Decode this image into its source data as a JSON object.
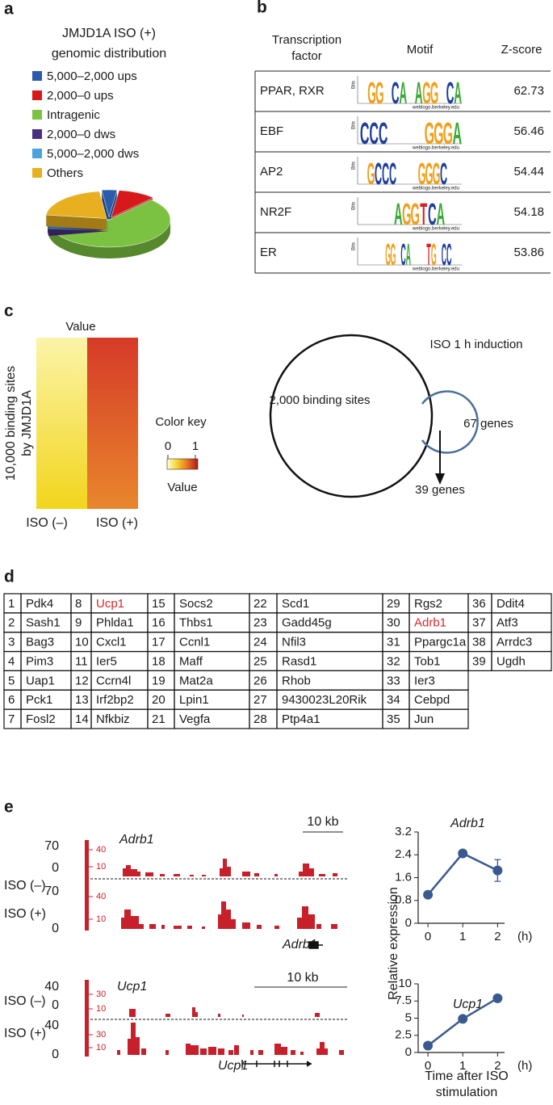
{
  "panel_a": {
    "label": "a",
    "chart_data": {
      "type": "pie",
      "title": [
        "JMJD1A ISO (+)",
        "genomic distribution"
      ],
      "categories": [
        "5,000–2,000 ups",
        "2,000–0 ups",
        "Intragenic",
        "2,000–0 dws",
        "5,000–2,000 dws",
        "Others"
      ],
      "values": [
        4,
        10,
        60,
        4,
        1,
        21
      ],
      "colors": [
        "#2a5caa",
        "#d7191c",
        "#7cc242",
        "#4b2d83",
        "#4aa3df",
        "#e8b020"
      ]
    }
  },
  "panel_b": {
    "label": "b",
    "headers": {
      "factor": [
        "Transcription",
        "factor"
      ],
      "motif": "Motif",
      "z_score": "Z-score"
    },
    "logo_axis": "Bits",
    "logo_credit": "weblogo.berkeley.edu",
    "letter_colors": {
      "A": "#3aa935",
      "C": "#1f3e9e",
      "G": "#f0a01c",
      "T": "#d61f26"
    },
    "rows": [
      {
        "factor": "PPAR, RXR",
        "z_score": 62.73,
        "motif_length": 13,
        "motif": [
          {
            "letter": "G",
            "position": 2
          },
          {
            "letter": "G",
            "position": 3
          },
          {
            "letter": "C",
            "position": 5
          },
          {
            "letter": "A",
            "position": 6
          },
          {
            "letter": "A",
            "position": 8
          },
          {
            "letter": "G",
            "position": 9
          },
          {
            "letter": "G",
            "position": 10
          },
          {
            "letter": "C",
            "position": 12
          },
          {
            "letter": "A",
            "position": 13
          }
        ]
      },
      {
        "factor": "EBF",
        "z_score": 56.46,
        "motif_length": 11,
        "motif": [
          {
            "letter": "C",
            "position": 1
          },
          {
            "letter": "C",
            "position": 2
          },
          {
            "letter": "C",
            "position": 3
          },
          {
            "letter": "G",
            "position": 8
          },
          {
            "letter": "G",
            "position": 9
          },
          {
            "letter": "G",
            "position": 10
          },
          {
            "letter": "A",
            "position": 11
          }
        ]
      },
      {
        "factor": "AP2",
        "z_score": 54.44,
        "motif_length": 14,
        "motif": [
          {
            "letter": "G",
            "position": 2
          },
          {
            "letter": "C",
            "position": 3
          },
          {
            "letter": "C",
            "position": 4
          },
          {
            "letter": "C",
            "position": 5
          },
          {
            "letter": "G",
            "position": 9
          },
          {
            "letter": "G",
            "position": 10
          },
          {
            "letter": "G",
            "position": 11
          },
          {
            "letter": "C",
            "position": 12
          }
        ]
      },
      {
        "factor": "NR2F",
        "z_score": 54.18,
        "motif_length": 12,
        "motif": [
          {
            "letter": "A",
            "position": 5
          },
          {
            "letter": "G",
            "position": 6
          },
          {
            "letter": "G",
            "position": 7
          },
          {
            "letter": "T",
            "position": 8
          },
          {
            "letter": "C",
            "position": 9
          },
          {
            "letter": "A",
            "position": 10
          }
        ]
      },
      {
        "factor": "ER",
        "z_score": 53.86,
        "motif_length": 20,
        "motif": [
          {
            "letter": "G",
            "position": 6
          },
          {
            "letter": "G",
            "position": 7
          },
          {
            "letter": "C",
            "position": 9
          },
          {
            "letter": "A",
            "position": 10
          },
          {
            "letter": "T",
            "position": 14
          },
          {
            "letter": "G",
            "position": 15
          },
          {
            "letter": "C",
            "position": 17
          },
          {
            "letter": "C",
            "position": 18
          }
        ]
      }
    ]
  },
  "panel_c": {
    "label": "c",
    "heatmap": {
      "title": "Value",
      "y_label": [
        "10,000 binding sites",
        "by JMJD1A"
      ],
      "columns": [
        "ISO (–)",
        "ISO (+)"
      ],
      "column_gradients": [
        [
          "#fbf4a8",
          "#f2d51c"
        ],
        [
          "#d63a28",
          "#e8862c"
        ]
      ],
      "color_key": {
        "title": "Color key",
        "ticks": [
          0,
          1
        ],
        "label": "Value",
        "colors": [
          "#ffffd0",
          "#f5d030",
          "#e87020",
          "#b01818"
        ]
      }
    },
    "venn": {
      "title": "ISO 1 h induction",
      "sets": [
        {
          "label": "2,000 binding sites",
          "color": "#111111"
        },
        {
          "label": "67 genes",
          "color": "#4a6f9a"
        }
      ],
      "overlap": "39 genes"
    }
  },
  "panel_d": {
    "label": "d",
    "highlight_color": "#d42a2a",
    "genes": [
      {
        "rank": 1,
        "name": "Pdk4"
      },
      {
        "rank": 2,
        "name": "Sash1"
      },
      {
        "rank": 3,
        "name": "Bag3"
      },
      {
        "rank": 4,
        "name": "Pim3"
      },
      {
        "rank": 5,
        "name": "Uap1"
      },
      {
        "rank": 6,
        "name": "Pck1"
      },
      {
        "rank": 7,
        "name": "Fosl2"
      },
      {
        "rank": 8,
        "name": "Ucp1",
        "highlight": true
      },
      {
        "rank": 9,
        "name": "Phlda1"
      },
      {
        "rank": 10,
        "name": "Cxcl1"
      },
      {
        "rank": 11,
        "name": "Ier5"
      },
      {
        "rank": 12,
        "name": "Ccrn4l"
      },
      {
        "rank": 13,
        "name": "Irf2bp2"
      },
      {
        "rank": 14,
        "name": "Nfkbiz"
      },
      {
        "rank": 15,
        "name": "Socs2"
      },
      {
        "rank": 16,
        "name": "Thbs1"
      },
      {
        "rank": 17,
        "name": "Ccnl1"
      },
      {
        "rank": 18,
        "name": "Maff"
      },
      {
        "rank": 19,
        "name": "Mat2a"
      },
      {
        "rank": 20,
        "name": "Lpin1"
      },
      {
        "rank": 21,
        "name": "Vegfa"
      },
      {
        "rank": 22,
        "name": "Scd1"
      },
      {
        "rank": 23,
        "name": "Gadd45g"
      },
      {
        "rank": 24,
        "name": "Nfil3"
      },
      {
        "rank": 25,
        "name": "Rasd1"
      },
      {
        "rank": 26,
        "name": "Rhob"
      },
      {
        "rank": 27,
        "name": "9430023L20Rik"
      },
      {
        "rank": 28,
        "name": "Ptp4a1"
      },
      {
        "rank": 29,
        "name": "Rgs2"
      },
      {
        "rank": 30,
        "name": "Adrb1",
        "highlight": true
      },
      {
        "rank": 31,
        "name": "Ppargc1a"
      },
      {
        "rank": 32,
        "name": "Tob1"
      },
      {
        "rank": 33,
        "name": "Ier3"
      },
      {
        "rank": 34,
        "name": "Cebpd"
      },
      {
        "rank": 35,
        "name": "Jun"
      },
      {
        "rank": 36,
        "name": "Ddit4"
      },
      {
        "rank": 37,
        "name": "Atf3"
      },
      {
        "rank": 38,
        "name": "Arrdc3"
      },
      {
        "rank": 39,
        "name": "Ugdh"
      }
    ]
  },
  "panel_e": {
    "label": "e",
    "tracks": [
      {
        "title": "Adrb1",
        "scale_bar": "10 kb",
        "conditions": [
          "ISO (–)",
          "ISO (+)"
        ],
        "scale_ticks": [
          70,
          0,
          70,
          0
        ],
        "inner_ticks": [
          40,
          10,
          40,
          10
        ],
        "gene_label": "Adrb1",
        "color": "#c8202a"
      },
      {
        "title": "Ucp1",
        "scale_bar": "10 kb",
        "conditions": [
          "ISO (–)",
          "ISO (+)"
        ],
        "scale_ticks": [
          40,
          0,
          40,
          0
        ],
        "inner_ticks": [
          30,
          10,
          30,
          10
        ],
        "gene_label": "Ucp1",
        "color": "#c8202a"
      }
    ],
    "charts": [
      {
        "type": "line",
        "title": "Adrb1",
        "x": [
          0,
          1,
          2
        ],
        "values": [
          1.0,
          2.45,
          1.85
        ],
        "errors": [
          0.05,
          0.08,
          0.38
        ],
        "xlim": [
          -0.28,
          2.2
        ],
        "xticks": [
          0,
          1,
          2
        ],
        "ylim": [
          0,
          3.2
        ],
        "yticks": [
          0,
          0.8,
          1.6,
          2.4,
          3.2
        ],
        "x_unit": "(h)",
        "color": "#3a5a8f"
      },
      {
        "type": "line",
        "title": "Ucp1",
        "x": [
          0,
          1,
          2
        ],
        "values": [
          1.0,
          4.9,
          7.9
        ],
        "errors": [
          0.1,
          0.2,
          0.25
        ],
        "xlim": [
          -0.28,
          2.2
        ],
        "xticks": [
          0,
          1,
          2
        ],
        "ylim": [
          0,
          10
        ],
        "yticks": [
          0,
          2.5,
          5,
          7.5,
          10
        ],
        "x_unit": "(h)",
        "color": "#3a5a8f"
      }
    ],
    "y_label": "Relative expression",
    "x_label": [
      "Time after ISO",
      "stimulation"
    ]
  }
}
